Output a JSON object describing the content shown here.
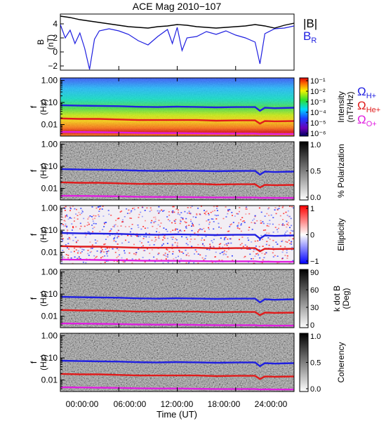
{
  "chart_data": {
    "title": "ACE Mag 2010−107",
    "xlabel": "Time (UT)",
    "x_ticks": [
      "00:00:00",
      "06:00:00",
      "12:00:00",
      "18:00:00",
      "24:00:00"
    ],
    "x_range_hours": [
      0,
      24
    ],
    "panels": [
      {
        "type": "line",
        "ylabel": [
          "B",
          "(nT)"
        ],
        "y_ticks": [
          "4",
          "2",
          "0",
          "−2"
        ],
        "y_range": [
          -2.6,
          5.4
        ],
        "legend": [
          {
            "label": "|B|",
            "color": "#000000"
          },
          {
            "label": "B",
            "sub": "R",
            "color": "#1f1fe0"
          }
        ],
        "series": [
          {
            "name": "|B|",
            "color": "#000000",
            "x": [
              0,
              1,
              2,
              3,
              4,
              5,
              6,
              7,
              8,
              9,
              10,
              11,
              12,
              13,
              14,
              15,
              16,
              17,
              18,
              19,
              20,
              21,
              22,
              23,
              24
            ],
            "y": [
              5.1,
              4.9,
              4.6,
              4.4,
              4.2,
              4.0,
              3.8,
              3.6,
              3.5,
              3.4,
              3.6,
              3.7,
              3.9,
              3.8,
              3.6,
              3.5,
              3.4,
              3.5,
              3.6,
              3.7,
              3.9,
              3.7,
              3.4,
              3.8,
              4.1
            ]
          },
          {
            "name": "B_R",
            "color": "#1f1fe0",
            "x": [
              0,
              0.5,
              1,
              1.5,
              2,
              2.5,
              3,
              3.5,
              4,
              5,
              6,
              7,
              8,
              9,
              10,
              11,
              11.5,
              12,
              12.5,
              13,
              14,
              15,
              16,
              17,
              18,
              19,
              20,
              20.5,
              21,
              22,
              23,
              24
            ],
            "y": [
              3.9,
              2.0,
              3.1,
              1.2,
              2.7,
              0.5,
              -2.5,
              1.8,
              3.0,
              3.3,
              3.0,
              2.5,
              1.6,
              1.0,
              2.2,
              3.2,
              1.2,
              3.5,
              0.2,
              2.0,
              2.2,
              2.9,
              2.5,
              3.0,
              2.4,
              2.0,
              1.4,
              -1.7,
              2.6,
              3.3,
              3.4,
              3.7
            ]
          }
        ]
      },
      {
        "type": "heatmap",
        "ylabel": [
          "f",
          "(Hz)"
        ],
        "y_ticks": [
          "1.00",
          "0.10",
          "0.01"
        ],
        "scale": "log",
        "colorbar_label": [
          "Intensity",
          "(nT²/Hz)"
        ],
        "colorbar_ticks": [
          "10⁻¹",
          "10⁻²",
          "10⁻³",
          "10⁻⁴",
          "10⁻⁵",
          "10⁻⁶"
        ],
        "gyro_labels": [
          {
            "label": "Ω",
            "sub": "H+",
            "color": "#1f1fe0"
          },
          {
            "label": "Ω",
            "sub": "He+",
            "color": "#e01b1b"
          },
          {
            "label": "Ω",
            "sub": "O+",
            "color": "#e01ee0"
          }
        ]
      },
      {
        "type": "heatmap",
        "ylabel": [
          "f",
          "(Hz)"
        ],
        "y_ticks": [
          "1.00",
          "0.10",
          "0.01"
        ],
        "colorbar_label": [
          "% Polarization"
        ],
        "colorbar_ticks": [
          "1.0",
          "0.5",
          "0.0"
        ]
      },
      {
        "type": "heatmap",
        "ylabel": [
          "f",
          "(Hz)"
        ],
        "y_ticks": [
          "1.00",
          "0.10",
          "0.01"
        ],
        "colorbar_label": [
          "Ellipticity"
        ],
        "colorbar_ticks": [
          "1",
          "0",
          "−1"
        ]
      },
      {
        "type": "heatmap",
        "ylabel": [
          "f",
          "(Hz)"
        ],
        "y_ticks": [
          "1.00",
          "0.10",
          "0.01"
        ],
        "colorbar_label": [
          "k dot B",
          "(Deg)"
        ],
        "colorbar_ticks": [
          "90",
          "60",
          "30",
          "0"
        ]
      },
      {
        "type": "heatmap",
        "ylabel": [
          "f",
          "(Hz)"
        ],
        "y_ticks": [
          "1.00",
          "0.10",
          "0.01"
        ],
        "colorbar_label": [
          "Coherency"
        ],
        "colorbar_ticks": [
          "1.0",
          "0.5",
          "0.0"
        ]
      }
    ],
    "gyrofrequency_lines": [
      {
        "name": "H+",
        "color": "#1f1fe0",
        "x": [
          0,
          2,
          4,
          6,
          8,
          10,
          12,
          14,
          16,
          18,
          20,
          20.5,
          21,
          22,
          24
        ],
        "f_hz": [
          0.075,
          0.072,
          0.07,
          0.068,
          0.064,
          0.062,
          0.065,
          0.063,
          0.06,
          0.062,
          0.062,
          0.042,
          0.058,
          0.055,
          0.058
        ]
      },
      {
        "name": "He+",
        "color": "#e01b1b",
        "x": [
          0,
          2,
          4,
          6,
          8,
          10,
          12,
          14,
          16,
          18,
          20,
          20.5,
          21,
          22,
          24
        ],
        "f_hz": [
          0.019,
          0.018,
          0.018,
          0.017,
          0.016,
          0.016,
          0.016,
          0.016,
          0.015,
          0.0155,
          0.0155,
          0.011,
          0.0145,
          0.014,
          0.0145
        ]
      },
      {
        "name": "O+",
        "color": "#e01ee0",
        "x": [
          0,
          2,
          4,
          6,
          8,
          10,
          12,
          14,
          16,
          18,
          20,
          20.5,
          21,
          22,
          24
        ],
        "f_hz": [
          0.0047,
          0.0046,
          0.0045,
          0.0044,
          0.0042,
          0.0041,
          0.0041,
          0.004,
          0.0039,
          0.0039,
          0.0039,
          0.0037,
          0.0038,
          0.0037,
          0.0037
        ]
      }
    ]
  }
}
